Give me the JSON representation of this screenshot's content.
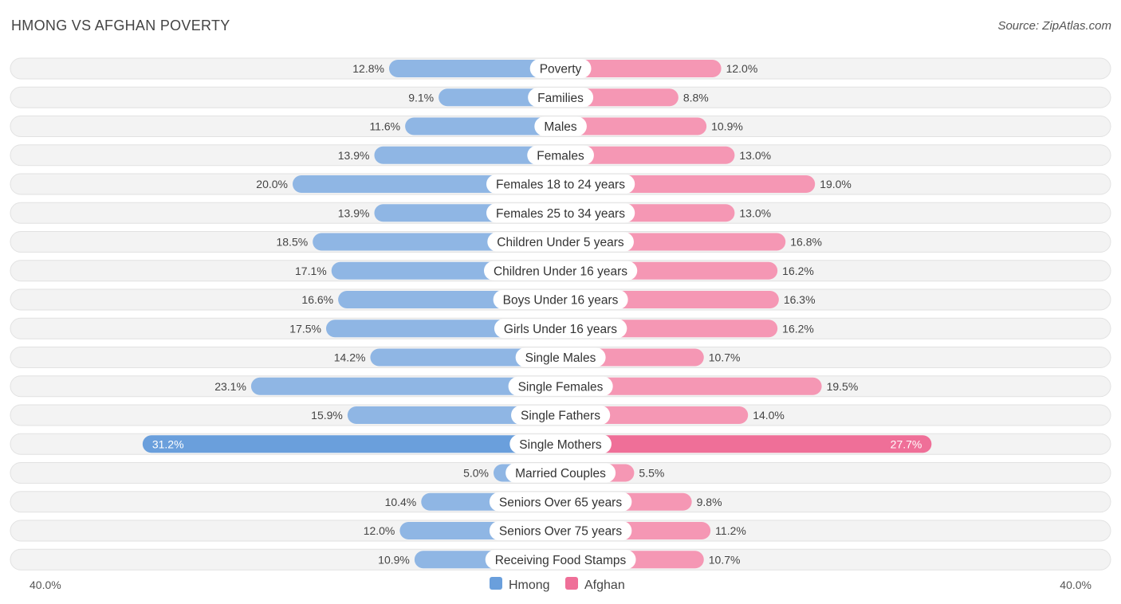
{
  "header": {
    "title": "HMONG VS AFGHAN POVERTY",
    "source": "Source: ZipAtlas.com"
  },
  "colors": {
    "hmong": "#8fb6e4",
    "hmong_strong": "#6a9fdc",
    "afghan": "#f597b4",
    "afghan_strong": "#ef6f98",
    "row_bg": "#eeeeee"
  },
  "chart_data": {
    "type": "bar",
    "orientation": "horizontal-diverging",
    "title": "HMONG VS AFGHAN POVERTY",
    "xlim": [
      0,
      40
    ],
    "axis_left_label": "40.0%",
    "axis_right_label": "40.0%",
    "legend": [
      "Hmong",
      "Afghan"
    ],
    "categories": [
      "Poverty",
      "Families",
      "Males",
      "Females",
      "Females 18 to 24 years",
      "Females 25 to 34 years",
      "Children Under 5 years",
      "Children Under 16 years",
      "Boys Under 16 years",
      "Girls Under 16 years",
      "Single Males",
      "Single Females",
      "Single Fathers",
      "Single Mothers",
      "Married Couples",
      "Seniors Over 65 years",
      "Seniors Over 75 years",
      "Receiving Food Stamps"
    ],
    "series": [
      {
        "name": "Hmong",
        "values": [
          12.8,
          9.1,
          11.6,
          13.9,
          20.0,
          13.9,
          18.5,
          17.1,
          16.6,
          17.5,
          14.2,
          23.1,
          15.9,
          31.2,
          5.0,
          10.4,
          12.0,
          10.9
        ],
        "labels": [
          "12.8%",
          "9.1%",
          "11.6%",
          "13.9%",
          "20.0%",
          "13.9%",
          "18.5%",
          "17.1%",
          "16.6%",
          "17.5%",
          "14.2%",
          "23.1%",
          "15.9%",
          "31.2%",
          "5.0%",
          "10.4%",
          "12.0%",
          "10.9%"
        ]
      },
      {
        "name": "Afghan",
        "values": [
          12.0,
          8.8,
          10.9,
          13.0,
          19.0,
          13.0,
          16.8,
          16.2,
          16.3,
          16.2,
          10.7,
          19.5,
          14.0,
          27.7,
          5.5,
          9.8,
          11.2,
          10.7
        ],
        "labels": [
          "12.0%",
          "8.8%",
          "10.9%",
          "13.0%",
          "19.0%",
          "13.0%",
          "16.8%",
          "16.2%",
          "16.3%",
          "16.2%",
          "10.7%",
          "19.5%",
          "14.0%",
          "27.7%",
          "5.5%",
          "9.8%",
          "11.2%",
          "10.7%"
        ]
      }
    ]
  }
}
